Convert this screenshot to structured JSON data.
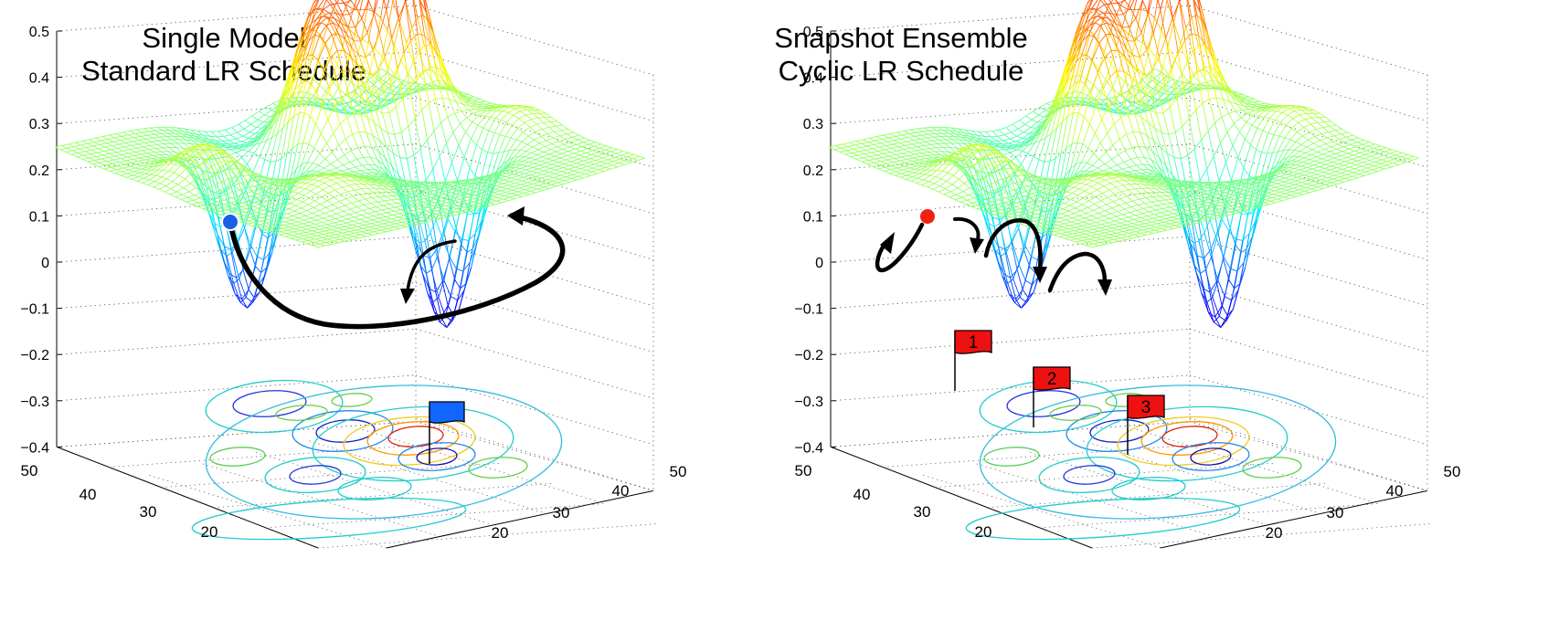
{
  "panels": [
    {
      "title_line1": "Single Model",
      "title_line2": "Standard LR Schedule",
      "z_ticks": [
        "0.5",
        "0.4",
        "0.3",
        "0.2",
        "0.1",
        "0",
        "−0.1",
        "−0.2",
        "−0.3",
        "−0.4"
      ],
      "left_axis_ticks": [
        "50",
        "40",
        "30",
        "20"
      ],
      "right_axis_ticks": [
        "50",
        "40",
        "30",
        "20"
      ],
      "start_marker_color": "#1a5fe6",
      "flag_color": "#1166ff"
    },
    {
      "title_line1": "Snapshot Ensemble",
      "title_line2": "Cyclic LR Schedule",
      "z_ticks": [
        "0.5",
        "0.4",
        "0.3",
        "0.2",
        "0.1",
        "0",
        "−0.1",
        "−0.2",
        "−0.3",
        "−0.4"
      ],
      "left_axis_ticks": [
        "50",
        "40",
        "30",
        "20"
      ],
      "right_axis_ticks": [
        "50",
        "40",
        "30",
        "20"
      ],
      "start_marker_color": "#ee2211",
      "flag_color": "#ee1111",
      "flag_labels": [
        "1",
        "2",
        "3"
      ]
    }
  ]
}
